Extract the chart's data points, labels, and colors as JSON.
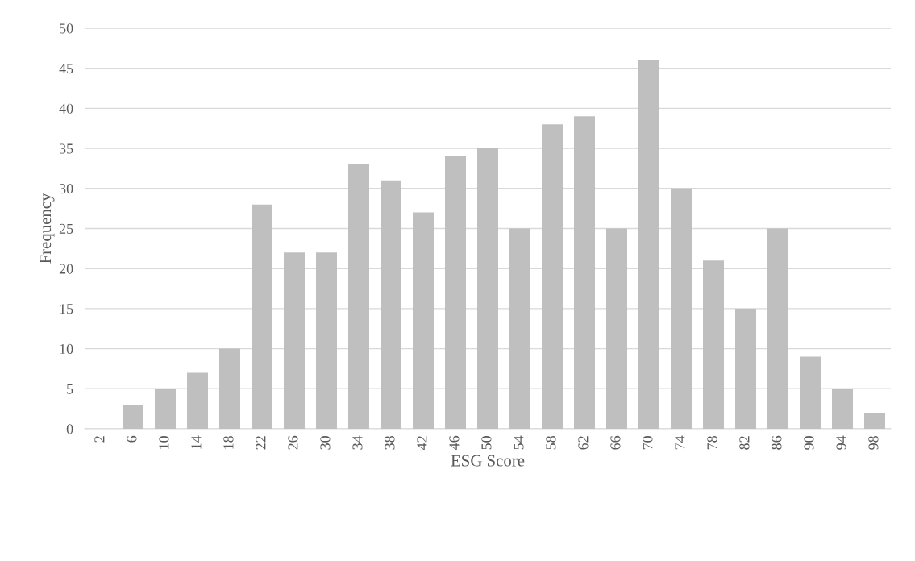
{
  "chart_data": {
    "type": "bar",
    "xlabel": "ESG Score",
    "ylabel": "Frequency",
    "categories": [
      "2",
      "6",
      "10",
      "14",
      "18",
      "22",
      "26",
      "30",
      "34",
      "38",
      "42",
      "46",
      "50",
      "54",
      "58",
      "62",
      "66",
      "70",
      "74",
      "78",
      "82",
      "86",
      "90",
      "94",
      "98"
    ],
    "values": [
      0,
      3,
      5,
      7,
      10,
      28,
      22,
      22,
      33,
      31,
      27,
      34,
      35,
      25,
      38,
      39,
      25,
      46,
      30,
      21,
      15,
      25,
      9,
      5,
      2
    ],
    "color": "#bfbfbf",
    "ylim": [
      0,
      50
    ],
    "yticks": [
      0,
      5,
      10,
      15,
      20,
      25,
      30,
      35,
      40,
      45,
      50
    ],
    "grid": "y"
  }
}
